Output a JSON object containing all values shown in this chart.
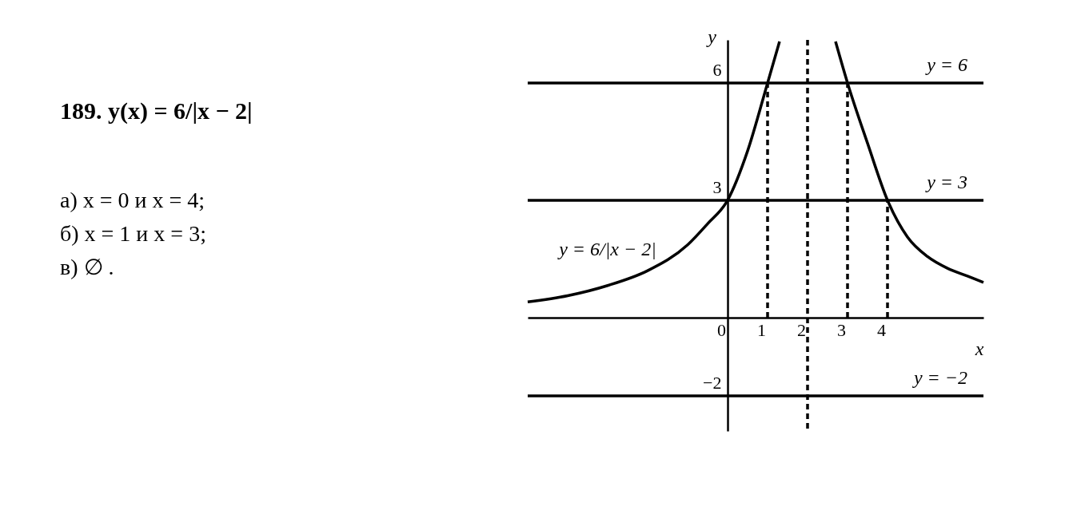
{
  "chart_data": {
    "type": "line",
    "xlabel": "x",
    "ylabel": "y",
    "xlim": [
      -5,
      6.4
    ],
    "ylim": [
      -2.9,
      7.1
    ],
    "xticks": [
      0,
      1,
      2,
      3,
      4
    ],
    "yticks": [
      -2,
      3,
      6
    ],
    "grid": false,
    "marker": "none",
    "series": [
      {
        "name": "y = 6/|x − 2|",
        "color": "#000000",
        "line_style": "solid",
        "x": [
          -5,
          -4,
          -3,
          -2,
          -1,
          -0.5,
          0,
          0.5,
          1,
          1.3
        ],
        "values": [
          0.4,
          0.56,
          0.82,
          1.2,
          1.86,
          2.4,
          3,
          4.26,
          6,
          7.06
        ]
      },
      {
        "color": "#000000",
        "line_style": "solid",
        "x": [
          2.7,
          3,
          3.5,
          4,
          4.5,
          5,
          5.5,
          6,
          6.4
        ],
        "values": [
          7.06,
          6,
          4.46,
          3,
          2.06,
          1.56,
          1.26,
          1.06,
          0.9
        ]
      },
      {
        "color": "#000000",
        "line_style": "dashed",
        "x": [
          1,
          1
        ],
        "values": [
          0,
          6
        ]
      },
      {
        "color": "#000000",
        "line_style": "dashed",
        "x": [
          3,
          3
        ],
        "values": [
          0,
          6
        ]
      },
      {
        "color": "#000000",
        "line_style": "dashed",
        "x": [
          4,
          4
        ],
        "values": [
          0,
          3
        ]
      }
    ],
    "ref_lines": [
      {
        "axis": "y",
        "value": 6,
        "label": "y = 6"
      },
      {
        "axis": "y",
        "value": 3,
        "label": "y = 3"
      },
      {
        "axis": "y",
        "value": -2,
        "label": "y = −2"
      },
      {
        "axis": "x",
        "value": 2,
        "line_style": "dashed"
      }
    ],
    "annotations": [
      "189. y(x) = 6/|x − 2|",
      "а) x = 0 и x = 4;",
      "б) x = 1 и x = 3;",
      "в) ∅ ."
    ]
  }
}
